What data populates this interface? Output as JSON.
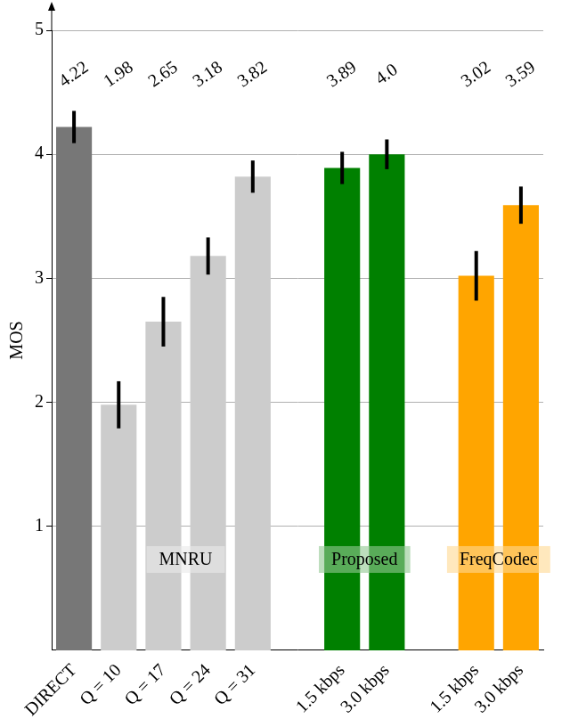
{
  "chart_data": {
    "type": "bar",
    "y_label": "MOS",
    "categories": [
      "DIRECT",
      "Q = 10",
      "Q = 17",
      "Q = 24",
      "Q = 31",
      null,
      "1.5 kbps",
      "3.0 kbps",
      null,
      "1.5 kbps",
      "3.0 kbps"
    ],
    "values": [
      4.22,
      1.98,
      2.65,
      3.18,
      3.82,
      null,
      3.89,
      4.0,
      null,
      3.02,
      3.59
    ],
    "value_labels": [
      "4.22",
      "1.98",
      "2.65",
      "3.18",
      "3.82",
      null,
      "3.89",
      "4.0",
      null,
      "3.02",
      "3.59"
    ],
    "errors": [
      0.13,
      0.19,
      0.2,
      0.15,
      0.13,
      null,
      0.13,
      0.12,
      null,
      0.2,
      0.15
    ],
    "colors": [
      "#777777",
      "#cccccc",
      "#cccccc",
      "#cccccc",
      "#cccccc",
      null,
      "#008000",
      "#008000",
      null,
      "#ffa500",
      "#ffa500"
    ],
    "groups": [
      {
        "name": "MNRU",
        "categories": [
          1,
          2,
          3,
          4
        ],
        "color": "#cccccc"
      },
      {
        "name": "Proposed",
        "categories": [
          6,
          7
        ],
        "color": "#008000"
      },
      {
        "name": "FreqCodec",
        "categories": [
          9,
          10
        ],
        "color": "#ffa500"
      }
    ],
    "ylim": [
      0,
      5
    ],
    "yticks": [
      1,
      2,
      3,
      4,
      5
    ],
    "grid": true,
    "data_labels": true
  }
}
